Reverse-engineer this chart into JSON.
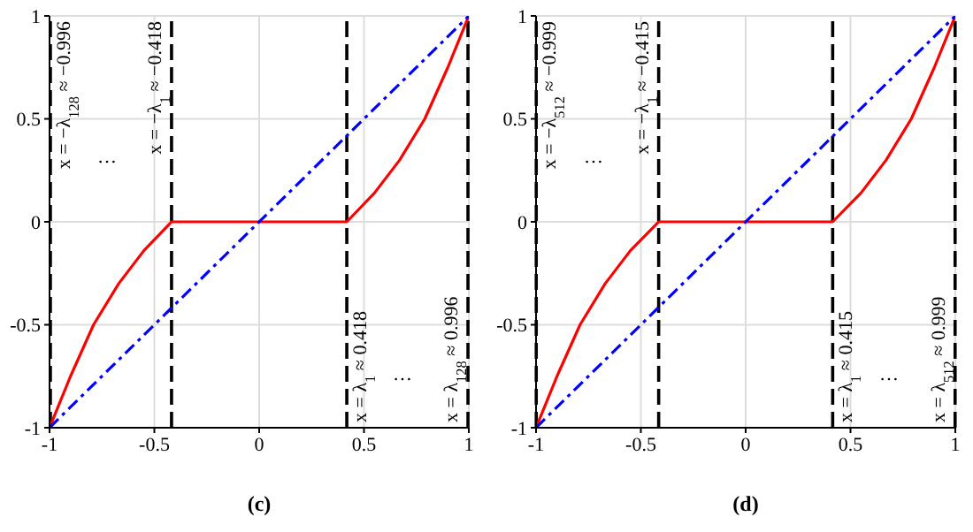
{
  "chart_data": [
    {
      "type": "line",
      "annotations": [
        "(c)",
        "…",
        "…"
      ],
      "series": [
        {
          "color": "#ff0000",
          "x": [
            -1,
            -0.9,
            -0.79,
            -0.67,
            -0.55,
            -0.418,
            0.418,
            0.55,
            0.67,
            0.79,
            0.9,
            1
          ],
          "values": [
            -1,
            -0.75,
            -0.5,
            -0.3,
            -0.14,
            0,
            0,
            0.14,
            0.3,
            0.5,
            0.75,
            1
          ],
          "line_style": "solid"
        },
        {
          "color": "#0000ff",
          "x": [
            -1,
            1
          ],
          "values": [
            -1,
            1
          ],
          "line_style": "dashed"
        }
      ],
      "ref_lines": [
        {
          "axis": "x",
          "value": -0.996,
          "label": "x = −λ$_{128}$ ≈ −0.996",
          "color": "#000000",
          "line_style": "dashed"
        },
        {
          "axis": "x",
          "value": -0.418,
          "label": "x = −λ$_{1}$ ≈ −0.418",
          "color": "#000000",
          "line_style": "dashed"
        },
        {
          "axis": "x",
          "value": 0.418,
          "label": "x = λ$_{1}$ ≈ 0.418",
          "color": "#000000",
          "line_style": "dashed"
        },
        {
          "axis": "x",
          "value": 0.996,
          "label": "x = λ$_{128}$ ≈ 0.996",
          "color": "#000000",
          "line_style": "dashed"
        }
      ],
      "xlim": [
        -1,
        1
      ],
      "ylim": [
        -1,
        1
      ],
      "xticks": [
        -1,
        -0.5,
        0,
        0.5,
        1
      ],
      "yticks": [
        -1,
        -0.5,
        0,
        0.5,
        1
      ],
      "grid": true,
      "marker": "none"
    },
    {
      "type": "line",
      "annotations": [
        "(d)",
        "…",
        "…"
      ],
      "series": [
        {
          "color": "#ff0000",
          "x": [
            -1,
            -0.9,
            -0.79,
            -0.67,
            -0.55,
            -0.415,
            0.415,
            0.55,
            0.67,
            0.79,
            0.9,
            1
          ],
          "values": [
            -1,
            -0.75,
            -0.5,
            -0.3,
            -0.14,
            0,
            0,
            0.14,
            0.3,
            0.5,
            0.75,
            1
          ],
          "line_style": "solid"
        },
        {
          "color": "#0000ff",
          "x": [
            -1,
            1
          ],
          "values": [
            -1,
            1
          ],
          "line_style": "dashed"
        }
      ],
      "ref_lines": [
        {
          "axis": "x",
          "value": -0.999,
          "label": "x = −λ$_{512}$ ≈ −0.999",
          "color": "#000000",
          "line_style": "dashed"
        },
        {
          "axis": "x",
          "value": -0.415,
          "label": "x = −λ$_{1}$ ≈ −0.415",
          "color": "#000000",
          "line_style": "dashed"
        },
        {
          "axis": "x",
          "value": 0.415,
          "label": "x = λ$_{1}$ ≈ 0.415",
          "color": "#000000",
          "line_style": "dashed"
        },
        {
          "axis": "x",
          "value": 0.999,
          "label": "x = λ$_{512}$ ≈ 0.999",
          "color": "#000000",
          "line_style": "dashed"
        }
      ],
      "xlim": [
        -1,
        1
      ],
      "ylim": [
        -1,
        1
      ],
      "xticks": [
        -1,
        -0.5,
        0,
        0.5,
        1
      ],
      "yticks": [
        -1,
        -0.5,
        0,
        0.5,
        1
      ],
      "grid": true,
      "marker": "none"
    }
  ]
}
